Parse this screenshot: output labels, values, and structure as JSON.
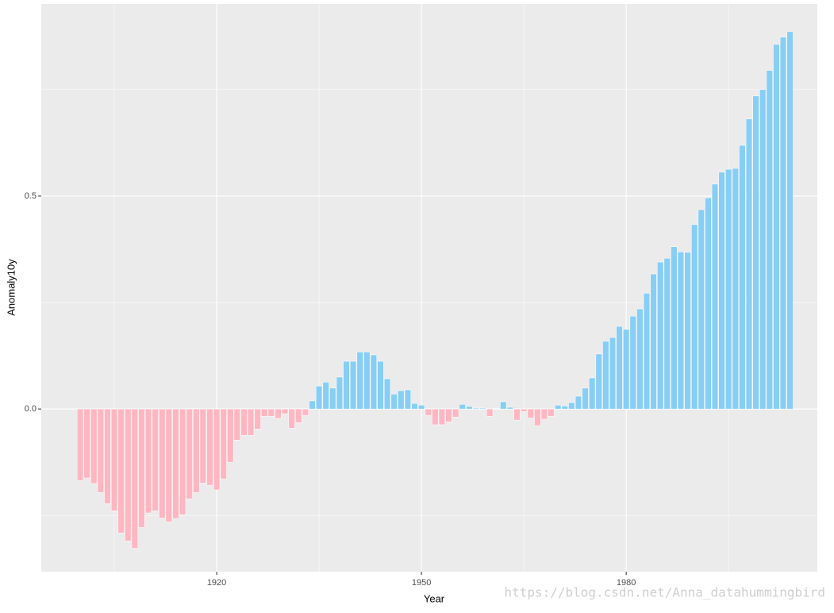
{
  "chart_data": {
    "type": "bar",
    "x_label": "Year",
    "y_label": "Anomaly10y",
    "annotation": "https://blog.csdn.net/Anna_datahummingbird",
    "x": [
      1900,
      1901,
      1902,
      1903,
      1904,
      1905,
      1906,
      1907,
      1908,
      1909,
      1910,
      1911,
      1912,
      1913,
      1914,
      1915,
      1916,
      1917,
      1918,
      1919,
      1920,
      1921,
      1922,
      1923,
      1924,
      1925,
      1926,
      1927,
      1928,
      1929,
      1930,
      1931,
      1932,
      1933,
      1934,
      1935,
      1936,
      1937,
      1938,
      1939,
      1940,
      1941,
      1942,
      1943,
      1944,
      1945,
      1946,
      1947,
      1948,
      1949,
      1950,
      1951,
      1952,
      1953,
      1954,
      1955,
      1956,
      1957,
      1958,
      1959,
      1960,
      1961,
      1962,
      1963,
      1964,
      1965,
      1966,
      1967,
      1968,
      1969,
      1970,
      1971,
      1972,
      1973,
      1974,
      1975,
      1976,
      1977,
      1978,
      1979,
      1980,
      1981,
      1982,
      1983,
      1984,
      1985,
      1986,
      1987,
      1988,
      1989,
      1990,
      1991,
      1992,
      1993,
      1994,
      1995,
      1996,
      1997,
      1998,
      1999,
      2000,
      2001,
      2002,
      2003,
      2004
    ],
    "values": [
      -0.168,
      -0.162,
      -0.175,
      -0.196,
      -0.222,
      -0.239,
      -0.291,
      -0.31,
      -0.327,
      -0.278,
      -0.244,
      -0.239,
      -0.256,
      -0.265,
      -0.257,
      -0.248,
      -0.211,
      -0.196,
      -0.174,
      -0.179,
      -0.19,
      -0.164,
      -0.125,
      -0.073,
      -0.062,
      -0.062,
      -0.047,
      -0.017,
      -0.017,
      -0.022,
      -0.011,
      -0.045,
      -0.032,
      -0.015,
      0.019,
      0.054,
      0.063,
      0.049,
      0.075,
      0.112,
      0.112,
      0.134,
      0.134,
      0.127,
      0.112,
      0.071,
      0.035,
      0.043,
      0.045,
      0.013,
      0.009,
      -0.015,
      -0.037,
      -0.037,
      -0.03,
      -0.019,
      0.011,
      0.006,
      0.002,
      0.002,
      -0.017,
      0.001,
      0.017,
      0.004,
      -0.026,
      -0.006,
      -0.021,
      -0.039,
      -0.024,
      -0.017,
      0.009,
      0.007,
      0.015,
      0.03,
      0.049,
      0.073,
      0.129,
      0.159,
      0.168,
      0.194,
      0.187,
      0.218,
      0.235,
      0.272,
      0.317,
      0.345,
      0.354,
      0.381,
      0.369,
      0.368,
      0.433,
      0.468,
      0.496,
      0.528,
      0.556,
      0.563,
      0.565,
      0.619,
      0.681,
      0.735,
      0.75,
      0.795,
      0.856,
      0.873,
      0.886
    ],
    "positive_color": "#87CEF5",
    "negative_color": "#FFB6C1",
    "xlim": [
      1894.3,
      2008.0
    ],
    "xticks": [
      1920,
      1950,
      1980
    ],
    "xminor": [
      1905,
      1935,
      1965,
      1995
    ],
    "ylim": [
      -0.382,
      0.951
    ],
    "yticks": [
      {
        "value": 0,
        "label": "0.0"
      },
      0.5
    ],
    "yminor": [
      -0.25,
      0.25,
      0.75
    ],
    "grid": true
  }
}
